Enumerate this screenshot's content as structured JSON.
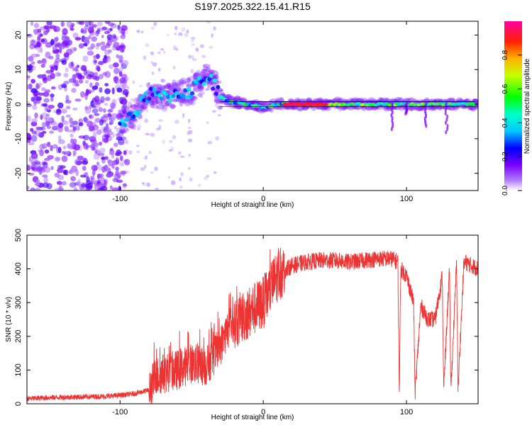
{
  "chart_data": [
    {
      "type": "heatmap",
      "title": "S197.2025.322.15.41.R15",
      "xlabel": "Height of straight line (km)",
      "ylabel": "Frequency (Hz)",
      "xlim": [
        -165,
        150
      ],
      "ylim": [
        -25,
        24
      ],
      "xticks": [
        -100,
        0,
        100
      ],
      "yticks": [
        -20,
        -10,
        0,
        10,
        20
      ],
      "colorbar": {
        "label": "Normalized spectral amplitude",
        "range": [
          0,
          1
        ],
        "ticks": [
          0.0,
          0.2,
          0.4,
          0.6,
          0.8
        ],
        "colormap": [
          "#ffffff",
          "#8000ff",
          "#0000ff",
          "#00ffff",
          "#00ff00",
          "#ffff00",
          "#ff8000",
          "#ff0000",
          "#ff00ff"
        ]
      },
      "ridge": {
        "x": [
          -165,
          -140,
          -120,
          -100,
          -90,
          -80,
          -70,
          -60,
          -50,
          -40,
          -35,
          -30,
          -25,
          -20,
          -10,
          0,
          10,
          20,
          40,
          60,
          80,
          100,
          120,
          150
        ],
        "freq": [
          0,
          0,
          -2,
          -5,
          -3,
          3,
          2,
          3,
          4,
          8,
          6,
          2,
          1,
          0.5,
          0,
          -1,
          0,
          0,
          0,
          0,
          0,
          0,
          0,
          0
        ]
      }
    },
    {
      "type": "line",
      "xlabel": "Height of straight line (km)",
      "ylabel": "SNR (10 * v/v)",
      "xlim": [
        -165,
        150
      ],
      "ylim": [
        0,
        500
      ],
      "xticks": [
        -100,
        0,
        100
      ],
      "yticks": [
        0,
        100,
        200,
        300,
        400,
        500
      ],
      "series": [
        {
          "name": "SNR",
          "color": "#ee3333",
          "x": [
            -165,
            -150,
            -130,
            -110,
            -100,
            -90,
            -80,
            -75,
            -70,
            -60,
            -50,
            -40,
            -30,
            -25,
            -20,
            -10,
            0,
            5,
            10,
            20,
            30,
            40,
            50,
            60,
            70,
            80,
            90,
            94,
            95,
            96,
            100,
            105,
            106,
            110,
            115,
            120,
            125,
            126,
            130,
            131,
            135,
            136,
            140,
            141,
            150
          ],
          "y": [
            15,
            18,
            20,
            22,
            25,
            30,
            40,
            80,
            90,
            100,
            120,
            110,
            170,
            220,
            240,
            270,
            300,
            340,
            380,
            410,
            420,
            425,
            425,
            420,
            425,
            430,
            430,
            420,
            30,
            400,
            380,
            300,
            30,
            290,
            250,
            250,
            380,
            40,
            400,
            40,
            420,
            40,
            410,
            420,
            400
          ]
        }
      ]
    }
  ]
}
